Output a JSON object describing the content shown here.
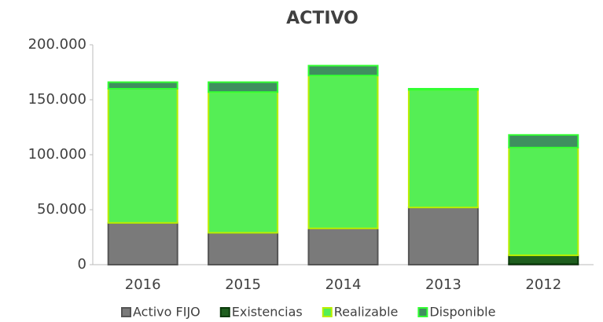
{
  "chart_data": {
    "type": "stacked_bar",
    "title": "ACTIVO",
    "categories": [
      "2016",
      "2015",
      "2014",
      "2013",
      "2012"
    ],
    "series": [
      {
        "name": "Activo FIJO",
        "color": "#7a7a7a",
        "border": "#555555",
        "values": [
          38000,
          29000,
          33000,
          52000,
          500
        ]
      },
      {
        "name": "Existencias",
        "color": "#1e5e1e",
        "border": "#0a3a0a",
        "values": [
          0,
          0,
          0,
          0,
          8000
        ]
      },
      {
        "name": "Realizable",
        "color": "#55ee55",
        "border": "#bbee00",
        "values": [
          122000,
          128000,
          139000,
          107000,
          98000
        ]
      },
      {
        "name": "Disponible",
        "color": "#3f8f5f",
        "border": "#33ff33",
        "values": [
          6000,
          9000,
          9000,
          1000,
          11500
        ]
      }
    ],
    "ylim": [
      0,
      200000
    ],
    "yticks": [
      0,
      {
        "value": 50000,
        "label": "50.000"
      },
      {
        "value": 100000,
        "label": "100.000"
      },
      {
        "value": 150000,
        "label": "150.000"
      },
      {
        "value": 200000,
        "label": "200.000"
      }
    ],
    "grid": false,
    "legend": "bottom"
  }
}
